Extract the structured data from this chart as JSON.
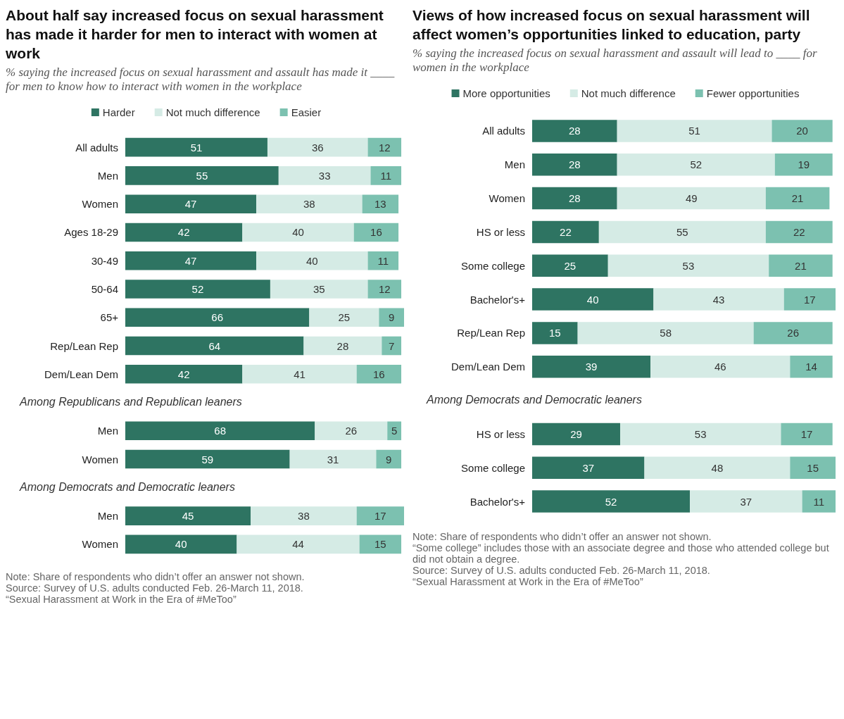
{
  "chart_data": [
    {
      "type": "bar",
      "orientation": "horizontal",
      "stacked": true,
      "data_labels": true,
      "legend": "top",
      "xlim": [
        0,
        100
      ],
      "title": "About half say increased focus on sexual harassment has made it harder for men to interact with women at work",
      "subtitle": "% saying the increased focus on sexual harassment and assault has made it ____ for men to know how to interact with women in the workplace",
      "categories": [
        "All adults",
        "Men",
        "Women",
        "Ages 18-29",
        "30-49",
        "50-64",
        "65+",
        "Rep/Lean Rep",
        "Dem/Lean Dem",
        "Among Republicans and Republican leaners",
        "Men",
        "Women",
        "Among Democrats and Democratic leaners",
        "Men",
        "Women"
      ],
      "series": [
        {
          "name": "Harder",
          "color": "#2e7462",
          "values": [
            51,
            55,
            47,
            42,
            47,
            52,
            66,
            64,
            42,
            null,
            68,
            59,
            null,
            45,
            40
          ]
        },
        {
          "name": "Not much difference",
          "color": "#d5ebe5",
          "values": [
            36,
            33,
            38,
            40,
            40,
            35,
            25,
            28,
            41,
            null,
            26,
            31,
            null,
            38,
            44
          ]
        },
        {
          "name": "Easier",
          "color": "#7cc1b0",
          "values": [
            12,
            11,
            13,
            16,
            11,
            12,
            9,
            7,
            16,
            null,
            5,
            9,
            null,
            17,
            15
          ]
        }
      ],
      "annotations": [
        "Note: Share of respondents who didn’t offer an answer not shown.",
        "Source: Survey of U.S. adults conducted Feb. 26-March 11, 2018.",
        "“Sexual Harassment at Work in the Era of #MeToo”"
      ]
    },
    {
      "type": "bar",
      "orientation": "horizontal",
      "stacked": true,
      "data_labels": true,
      "legend": "top",
      "xlim": [
        0,
        100
      ],
      "title": "Views of how increased focus on sexual harassment will affect women’s opportunities linked to education, party",
      "subtitle": "% saying the increased focus on sexual harassment and assault will lead to ____ for women in the workplace",
      "categories": [
        "All adults",
        "Men",
        "Women",
        "HS or less",
        "Some college",
        "Bachelor's+",
        "Rep/Lean Rep",
        "Dem/Lean Dem",
        "Among Democrats and Democratic leaners",
        "HS or less",
        "Some college",
        "Bachelor's+"
      ],
      "series": [
        {
          "name": "More opportunities",
          "color": "#2e7462",
          "values": [
            28,
            28,
            28,
            22,
            25,
            40,
            15,
            39,
            null,
            29,
            37,
            52
          ]
        },
        {
          "name": "Not much difference",
          "color": "#d5ebe5",
          "values": [
            51,
            52,
            49,
            55,
            53,
            43,
            58,
            46,
            null,
            53,
            48,
            37
          ]
        },
        {
          "name": "Fewer opportunities",
          "color": "#7cc1b0",
          "values": [
            20,
            19,
            21,
            22,
            21,
            17,
            26,
            14,
            null,
            17,
            15,
            11
          ]
        }
      ],
      "annotations": [
        "Note: Share of respondents who didn’t offer an answer not shown.",
        "“Some college” includes those with an associate degree and those who attended college but did not obtain a degree.",
        "Source: Survey of U.S. adults conducted Feb. 26-March 11, 2018.",
        "“Sexual Harassment at Work in the Era of #MeToo”"
      ]
    }
  ]
}
